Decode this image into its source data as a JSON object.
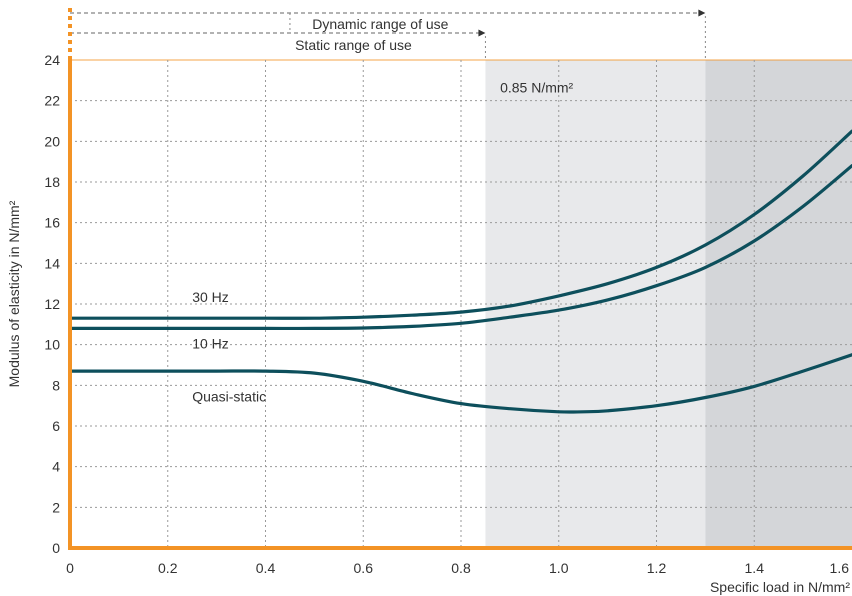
{
  "chart_data": {
    "type": "line",
    "title": "",
    "xlabel": "Specific load in N/mm²",
    "ylabel": "Modulus of elasticity in N/mm²",
    "xlim": [
      0,
      1.6
    ],
    "ylim": [
      0,
      24
    ],
    "x_ticks": [
      "0",
      "0.2",
      "0.4",
      "0.6",
      "0.8",
      "1.0",
      "1.2",
      "1.4",
      "1.6"
    ],
    "y_ticks": [
      "0",
      "2",
      "4",
      "6",
      "8",
      "10",
      "12",
      "14",
      "16",
      "18",
      "20",
      "22",
      "24"
    ],
    "grid": true,
    "ranges": {
      "dynamic": {
        "label": "Dynamic range of use",
        "x_end": 1.3
      },
      "static": {
        "label": "Static range of use",
        "x_end": 0.85
      }
    },
    "shaded_regions": [
      {
        "x_start": 0.85,
        "x_end": 1.3,
        "color": "#e8e9eb"
      },
      {
        "x_start": 1.3,
        "x_end": 1.6,
        "color": "#d4d6d9"
      }
    ],
    "annotation": {
      "text": "0.85 N/mm²",
      "x": 0.88,
      "y": 22.4
    },
    "colors": {
      "line": "#0d4f5c",
      "axis": "#f39325",
      "grid": "#9a9a9a"
    },
    "series": [
      {
        "name": "30 Hz",
        "label_at": {
          "x": 0.25,
          "y": 12.1
        },
        "points": [
          [
            0,
            11.3
          ],
          [
            0.1,
            11.3
          ],
          [
            0.2,
            11.3
          ],
          [
            0.3,
            11.3
          ],
          [
            0.4,
            11.3
          ],
          [
            0.5,
            11.3
          ],
          [
            0.6,
            11.35
          ],
          [
            0.7,
            11.45
          ],
          [
            0.8,
            11.6
          ],
          [
            0.9,
            11.9
          ],
          [
            1.0,
            12.4
          ],
          [
            1.1,
            13.0
          ],
          [
            1.2,
            13.8
          ],
          [
            1.3,
            14.9
          ],
          [
            1.4,
            16.4
          ],
          [
            1.5,
            18.3
          ],
          [
            1.6,
            20.5
          ]
        ]
      },
      {
        "name": "10 Hz",
        "label_at": {
          "x": 0.25,
          "y": 9.8
        },
        "points": [
          [
            0,
            10.8
          ],
          [
            0.1,
            10.8
          ],
          [
            0.2,
            10.8
          ],
          [
            0.3,
            10.8
          ],
          [
            0.4,
            10.8
          ],
          [
            0.5,
            10.8
          ],
          [
            0.6,
            10.82
          ],
          [
            0.7,
            10.9
          ],
          [
            0.8,
            11.05
          ],
          [
            0.9,
            11.35
          ],
          [
            1.0,
            11.7
          ],
          [
            1.1,
            12.2
          ],
          [
            1.2,
            12.9
          ],
          [
            1.3,
            13.8
          ],
          [
            1.4,
            15.1
          ],
          [
            1.5,
            16.8
          ],
          [
            1.6,
            18.8
          ]
        ]
      },
      {
        "name": "Quasi-static",
        "label_at": {
          "x": 0.25,
          "y": 7.2
        },
        "points": [
          [
            0,
            8.7
          ],
          [
            0.1,
            8.7
          ],
          [
            0.2,
            8.7
          ],
          [
            0.3,
            8.7
          ],
          [
            0.4,
            8.7
          ],
          [
            0.5,
            8.6
          ],
          [
            0.6,
            8.2
          ],
          [
            0.7,
            7.6
          ],
          [
            0.8,
            7.1
          ],
          [
            0.9,
            6.85
          ],
          [
            1.0,
            6.7
          ],
          [
            1.05,
            6.7
          ],
          [
            1.1,
            6.75
          ],
          [
            1.2,
            7.0
          ],
          [
            1.3,
            7.4
          ],
          [
            1.4,
            7.95
          ],
          [
            1.5,
            8.7
          ],
          [
            1.6,
            9.5
          ]
        ]
      }
    ]
  }
}
